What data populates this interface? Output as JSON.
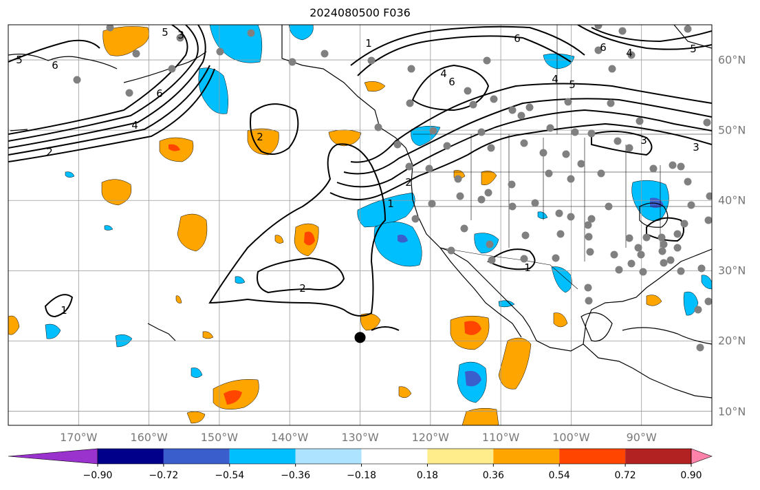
{
  "title": "2024080500 F036",
  "map": {
    "lon_labels": [
      "170°W",
      "160°W",
      "150°W",
      "140°W",
      "130°W",
      "120°W",
      "110°W",
      "100°W",
      "90°W"
    ],
    "lon_values": [
      -170,
      -160,
      -150,
      -140,
      -130,
      -120,
      -110,
      -100,
      -90
    ],
    "lat_labels": [
      "60°N",
      "50°N",
      "40°N",
      "30°N",
      "20°N",
      "10°N"
    ],
    "lat_values": [
      60,
      50,
      40,
      30,
      20,
      10
    ],
    "extent": {
      "lon_min": -180,
      "lon_max": -80,
      "lat_min": 8,
      "lat_max": 65
    },
    "marker": {
      "lon": -130,
      "lat": 20.5
    },
    "contour_labels": [
      "1",
      "2",
      "3",
      "4",
      "5",
      "6"
    ]
  },
  "colorbar": {
    "labels": [
      "−0.90",
      "−0.72",
      "−0.54",
      "−0.36",
      "−0.18",
      "0.18",
      "0.36",
      "0.54",
      "0.72",
      "0.90"
    ],
    "values": [
      -0.9,
      -0.72,
      -0.54,
      -0.36,
      -0.18,
      0.18,
      0.36,
      0.54,
      0.72,
      0.9
    ],
    "colors": [
      "#9a32cd",
      "#00008b",
      "#3a5fcd",
      "#00bfff",
      "#aee3ff",
      "#ffffff",
      "#ffec8b",
      "#ffa500",
      "#ff4500",
      "#b22222",
      "#ff82ab"
    ]
  }
}
